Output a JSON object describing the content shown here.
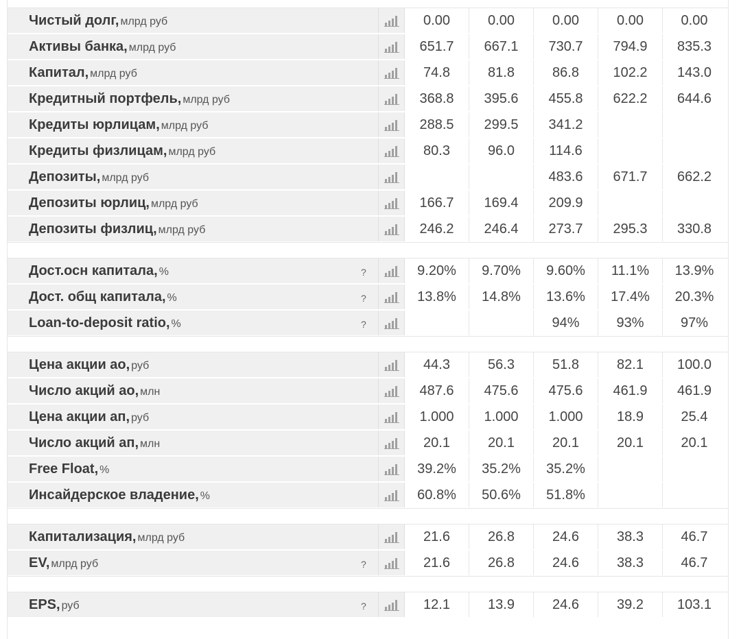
{
  "groups": [
    {
      "rows": [
        {
          "label": "Чистый долг,",
          "unit": "млрд руб",
          "help": "",
          "values": [
            "0.00",
            "0.00",
            "0.00",
            "0.00",
            "0.00"
          ]
        },
        {
          "label": "Активы банка,",
          "unit": "млрд руб",
          "help": "",
          "values": [
            "651.7",
            "667.1",
            "730.7",
            "794.9",
            "835.3"
          ]
        },
        {
          "label": "Капитал,",
          "unit": "млрд руб",
          "help": "",
          "values": [
            "74.8",
            "81.8",
            "86.8",
            "102.2",
            "143.0"
          ]
        },
        {
          "label": "Кредитный портфель,",
          "unit": "млрд руб",
          "help": "",
          "values": [
            "368.8",
            "395.6",
            "455.8",
            "622.2",
            "644.6"
          ]
        },
        {
          "label": "Кредиты юрлицам,",
          "unit": "млрд руб",
          "help": "",
          "values": [
            "288.5",
            "299.5",
            "341.2",
            "",
            ""
          ]
        },
        {
          "label": "Кредиты физлицам,",
          "unit": "млрд руб",
          "help": "",
          "values": [
            "80.3",
            "96.0",
            "114.6",
            "",
            ""
          ]
        },
        {
          "label": "Депозиты,",
          "unit": "млрд руб",
          "help": "",
          "values": [
            "",
            "",
            "483.6",
            "671.7",
            "662.2"
          ]
        },
        {
          "label": "Депозиты юрлиц,",
          "unit": "млрд руб",
          "help": "",
          "values": [
            "166.7",
            "169.4",
            "209.9",
            "",
            ""
          ]
        },
        {
          "label": "Депозиты физлиц,",
          "unit": "млрд руб",
          "help": "",
          "values": [
            "246.2",
            "246.4",
            "273.7",
            "295.3",
            "330.8"
          ]
        }
      ]
    },
    {
      "rows": [
        {
          "label": "Дост.осн капитала,",
          "unit": "%",
          "help": "?",
          "values": [
            "9.20%",
            "9.70%",
            "9.60%",
            "11.1%",
            "13.9%"
          ]
        },
        {
          "label": "Дост. общ капитала,",
          "unit": "%",
          "help": "?",
          "values": [
            "13.8%",
            "14.8%",
            "13.6%",
            "17.4%",
            "20.3%"
          ]
        },
        {
          "label": "Loan-to-deposit ratio,",
          "unit": "%",
          "help": "?",
          "values": [
            "",
            "",
            "94%",
            "93%",
            "97%"
          ]
        }
      ]
    },
    {
      "rows": [
        {
          "label": "Цена акции ао,",
          "unit": "руб",
          "help": "",
          "values": [
            "44.3",
            "56.3",
            "51.8",
            "82.1",
            "100.0"
          ]
        },
        {
          "label": "Число акций ао,",
          "unit": "млн",
          "help": "",
          "values": [
            "487.6",
            "475.6",
            "475.6",
            "461.9",
            "461.9"
          ]
        },
        {
          "label": "Цена акции ап,",
          "unit": "руб",
          "help": "",
          "values": [
            "1.000",
            "1.000",
            "1.000",
            "18.9",
            "25.4"
          ]
        },
        {
          "label": "Число акций ап,",
          "unit": "млн",
          "help": "",
          "values": [
            "20.1",
            "20.1",
            "20.1",
            "20.1",
            "20.1"
          ]
        },
        {
          "label": "Free Float,",
          "unit": "%",
          "help": "",
          "values": [
            "39.2%",
            "35.2%",
            "35.2%",
            "",
            ""
          ]
        },
        {
          "label": "Инсайдерское владение,",
          "unit": "%",
          "help": "",
          "values": [
            "60.8%",
            "50.6%",
            "51.8%",
            "",
            ""
          ]
        }
      ]
    },
    {
      "rows": [
        {
          "label": "Капитализация,",
          "unit": "млрд руб",
          "help": "",
          "values": [
            "21.6",
            "26.8",
            "24.6",
            "38.3",
            "46.7"
          ]
        },
        {
          "label": "EV,",
          "unit": "млрд руб",
          "help": "?",
          "values": [
            "21.6",
            "26.8",
            "24.6",
            "38.3",
            "46.7"
          ]
        }
      ]
    },
    {
      "rows": [
        {
          "label": "EPS,",
          "unit": "руб",
          "help": "?",
          "values": [
            "12.1",
            "13.9",
            "24.6",
            "39.2",
            "103.1"
          ]
        }
      ]
    }
  ],
  "icons": {
    "chart": "bar-chart-icon"
  },
  "colors": {
    "label_bg": "#f0f0f0",
    "text": "#3b3b3b",
    "icon": "#a0a0a0"
  }
}
